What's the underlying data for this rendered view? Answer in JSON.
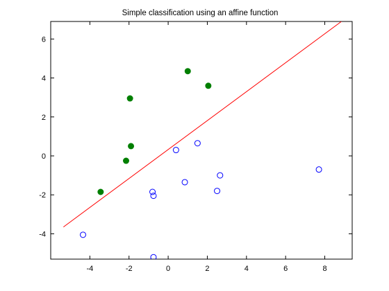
{
  "chart_data": {
    "type": "scatter",
    "title": "Simple classification using an affine function",
    "xlabel": "",
    "ylabel": "",
    "xlim": [
      -6,
      9.4
    ],
    "ylim": [
      -5.3,
      6.9
    ],
    "xticks": [
      -4,
      -2,
      0,
      2,
      4,
      6,
      8
    ],
    "yticks": [
      -4,
      -2,
      0,
      2,
      4,
      6
    ],
    "grid": false,
    "series": [
      {
        "marker": "filled-circle",
        "color": "#007f00",
        "points": [
          [
            -3.45,
            -1.85
          ],
          [
            -2.15,
            -0.25
          ],
          [
            -1.9,
            0.5
          ],
          [
            -1.95,
            2.95
          ],
          [
            1.0,
            4.35
          ],
          [
            2.05,
            3.6
          ]
        ]
      },
      {
        "marker": "open-circle",
        "color": "#0000ff",
        "points": [
          [
            -4.35,
            -4.05
          ],
          [
            -0.8,
            -1.85
          ],
          [
            -0.75,
            -2.05
          ],
          [
            -0.75,
            -5.2
          ],
          [
            0.4,
            0.3
          ],
          [
            0.85,
            -1.35
          ],
          [
            1.5,
            0.65
          ],
          [
            2.5,
            -1.8
          ],
          [
            2.65,
            -1.0
          ],
          [
            7.7,
            -0.7
          ]
        ]
      }
    ],
    "lines": [
      {
        "color": "#ff0000",
        "points": [
          [
            -5.35,
            -3.65
          ],
          [
            8.85,
            6.9
          ]
        ]
      }
    ]
  }
}
